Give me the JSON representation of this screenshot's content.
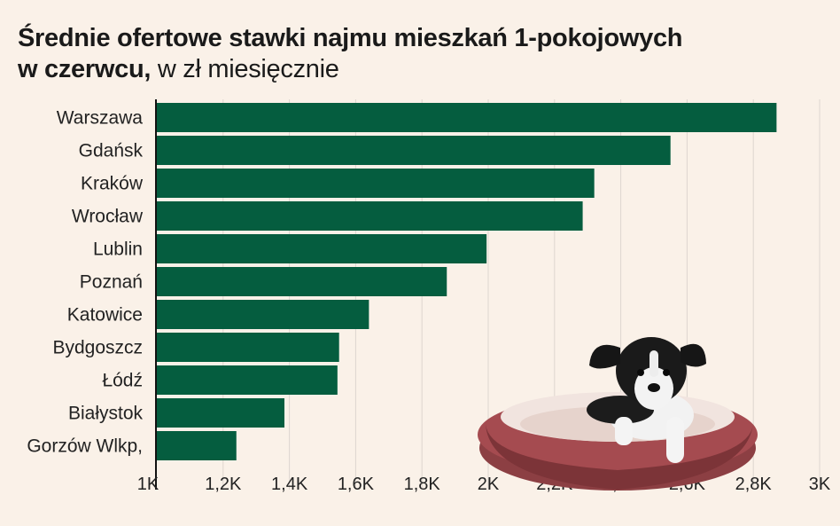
{
  "chart_data": {
    "type": "bar",
    "orientation": "horizontal",
    "title": "Średnie ofertowe stawki najmu mieszkań 1-pokojowych",
    "title_line2": "w czerwcu,",
    "subtitle": "w zł miesięcznie",
    "categories": [
      "Warszawa",
      "Gdańsk",
      "Kraków",
      "Wrocław",
      "Lublin",
      "Poznań",
      "Katowice",
      "Bydgoszcz",
      "Łódź",
      "Białystok",
      "Gorzów Wlkp,"
    ],
    "values": [
      2870,
      2550,
      2320,
      2285,
      1995,
      1875,
      1640,
      1550,
      1545,
      1385,
      1240
    ],
    "xlim": [
      1000,
      3000
    ],
    "xticks": [
      1000,
      1200,
      1400,
      1600,
      1800,
      2000,
      2200,
      2400,
      2600,
      2800,
      3000
    ],
    "xtick_labels": [
      "1K",
      "1,2K",
      "1,4K",
      "1,6K",
      "1,8K",
      "2K",
      "2,2K",
      "2,4K",
      "2,6K",
      "2,8K",
      "3K"
    ],
    "grid": true,
    "bar_color": "#055d3f"
  }
}
